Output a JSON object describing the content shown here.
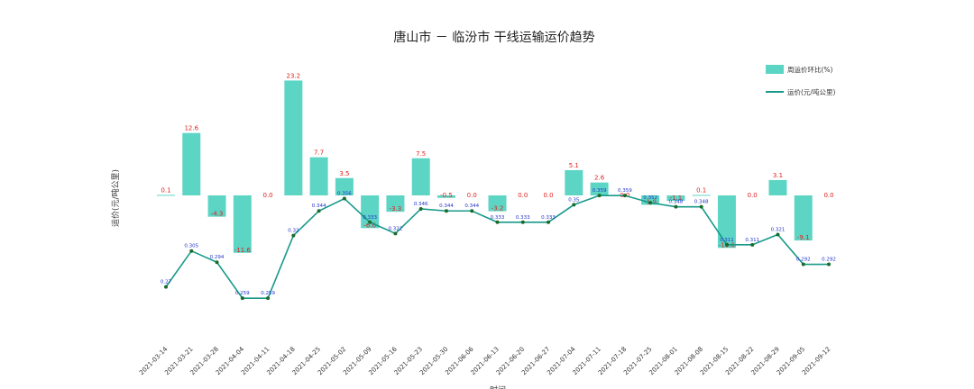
{
  "chart_data": {
    "type": "bar+line",
    "title": "唐山市 － 临汾市 干线运输运价趋势",
    "ylabel": "运价(元/吨公里)",
    "xlabel": "时间",
    "categories": [
      "2021-03-14",
      "2021-03-21",
      "2021-03-28",
      "2021-04-04",
      "2021-04-11",
      "2021-04-18",
      "2021-04-25",
      "2021-05-02",
      "2021-05-09",
      "2021-05-16",
      "2021-05-23",
      "2021-05-30",
      "2021-06-06",
      "2021-06-13",
      "2021-06-20",
      "2021-06-27",
      "2021-07-04",
      "2021-07-11",
      "2021-07-18",
      "2021-07-25",
      "2021-08-01",
      "2021-08-08",
      "2021-08-15",
      "2021-08-22",
      "2021-08-29",
      "2021-09-05",
      "2021-09-12"
    ],
    "series": [
      {
        "name": "周运价环比(%)",
        "kind": "bar",
        "color": "#5dd5c4",
        "values": [
          0.1,
          12.6,
          -4.3,
          -11.6,
          0.0,
          23.2,
          7.7,
          3.5,
          -6.6,
          -3.3,
          7.5,
          -0.5,
          0.0,
          -3.2,
          0.0,
          0.0,
          5.1,
          2.6,
          0.0,
          -1.9,
          -1.1,
          0.1,
          -10.6,
          0.0,
          3.1,
          -9.1,
          0.0
        ],
        "labels": [
          "0.1",
          "12.6",
          "-4.3",
          "-11.6",
          "0.0",
          "23.2",
          "7.7",
          "3.5",
          "-6.6",
          "-3.3",
          "7.5",
          "-0.5",
          "0.0",
          "-3.2",
          "0.0",
          "0.0",
          "5.1",
          "2.6",
          "0.0",
          "-1.9",
          "-1.1",
          "0.1",
          "-10.6",
          "0.0",
          "3.1",
          "-9.1",
          "0.0"
        ]
      },
      {
        "name": "运价(元/吨公里)",
        "kind": "line",
        "color": "#18998a",
        "marker_color": "#1b6b2a",
        "values": [
          0.27,
          0.305,
          0.294,
          0.259,
          0.259,
          0.32,
          0.344,
          0.356,
          0.333,
          0.322,
          0.346,
          0.344,
          0.344,
          0.333,
          0.333,
          0.333,
          0.35,
          0.359,
          0.359,
          0.352,
          0.348,
          0.348,
          0.311,
          0.311,
          0.321,
          0.292,
          0.292
        ],
        "labels": [
          "0.27",
          "0.305",
          "0.294",
          "0.259",
          "0.259",
          "0.32",
          "0.344",
          "0.356",
          "0.333",
          "0.322",
          "0.346",
          "0.344",
          "0.344",
          "0.333",
          "0.333",
          "0.333",
          "0.35",
          "0.359",
          "0.359",
          "0.352",
          "0.348",
          "0.348",
          "0.311",
          "0.311",
          "0.321",
          "0.292",
          "0.292"
        ]
      }
    ],
    "bar_range": [
      -15,
      30
    ],
    "line_range": [
      0.15,
      0.5
    ],
    "legend": "top-right",
    "grid": false
  }
}
